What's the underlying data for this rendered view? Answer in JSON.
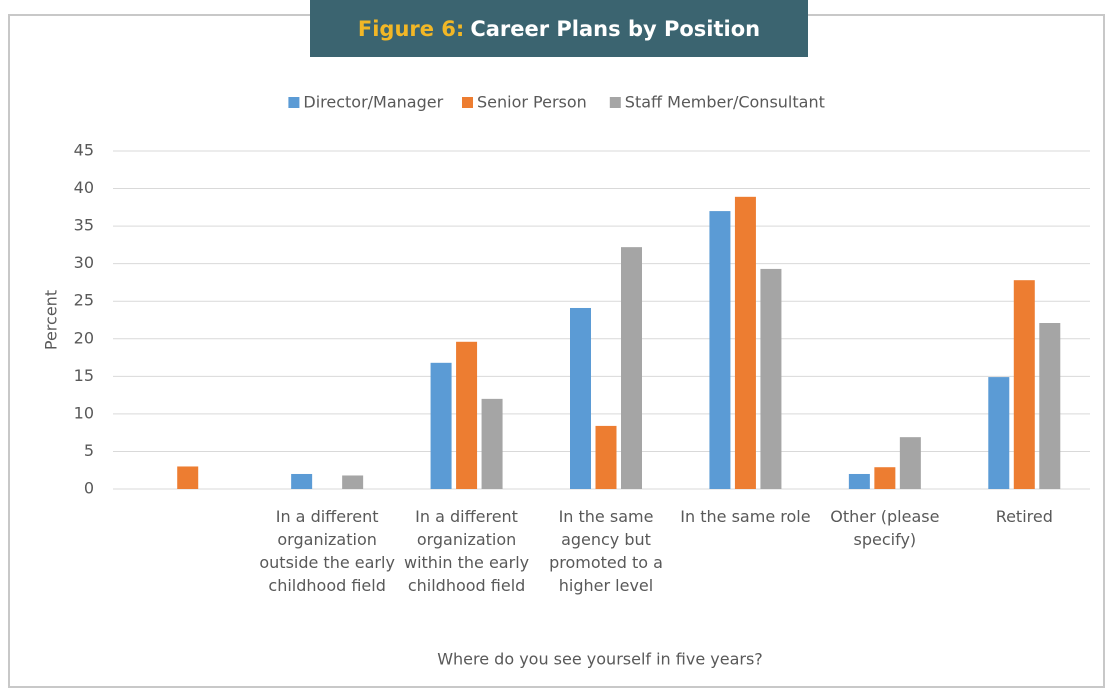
{
  "chart_data": {
    "type": "bar",
    "figure_label": "Figure 6:",
    "title": "Career Plans by Position",
    "x_label": "Where do you see yourself in five years?",
    "y_label": "Percent",
    "categories": [
      null,
      "In a different organization outside the early childhood field",
      "In a different organization within the early childhood field",
      "In the same agency but promoted to a higher level",
      "In the same role",
      "Other  (please specify)",
      "Retired"
    ],
    "series": [
      {
        "name": "Director/Manager",
        "color": "#5b9bd5",
        "values": [
          0,
          2,
          16.8,
          24.1,
          37,
          2,
          14.9
        ]
      },
      {
        "name": "Senior Person",
        "color": "#ed7d31",
        "values": [
          3,
          0,
          19.6,
          8.4,
          38.9,
          2.9,
          27.8
        ]
      },
      {
        "name": "Staff Member/Consultant",
        "color": "#a5a5a5",
        "values": [
          0,
          1.8,
          12,
          32.2,
          29.3,
          6.9,
          22.1
        ]
      }
    ],
    "ylim": [
      0,
      45
    ],
    "yticks": [
      0,
      5,
      10,
      15,
      20,
      25,
      30,
      35,
      40,
      45
    ],
    "grid": true,
    "legend": "top"
  }
}
